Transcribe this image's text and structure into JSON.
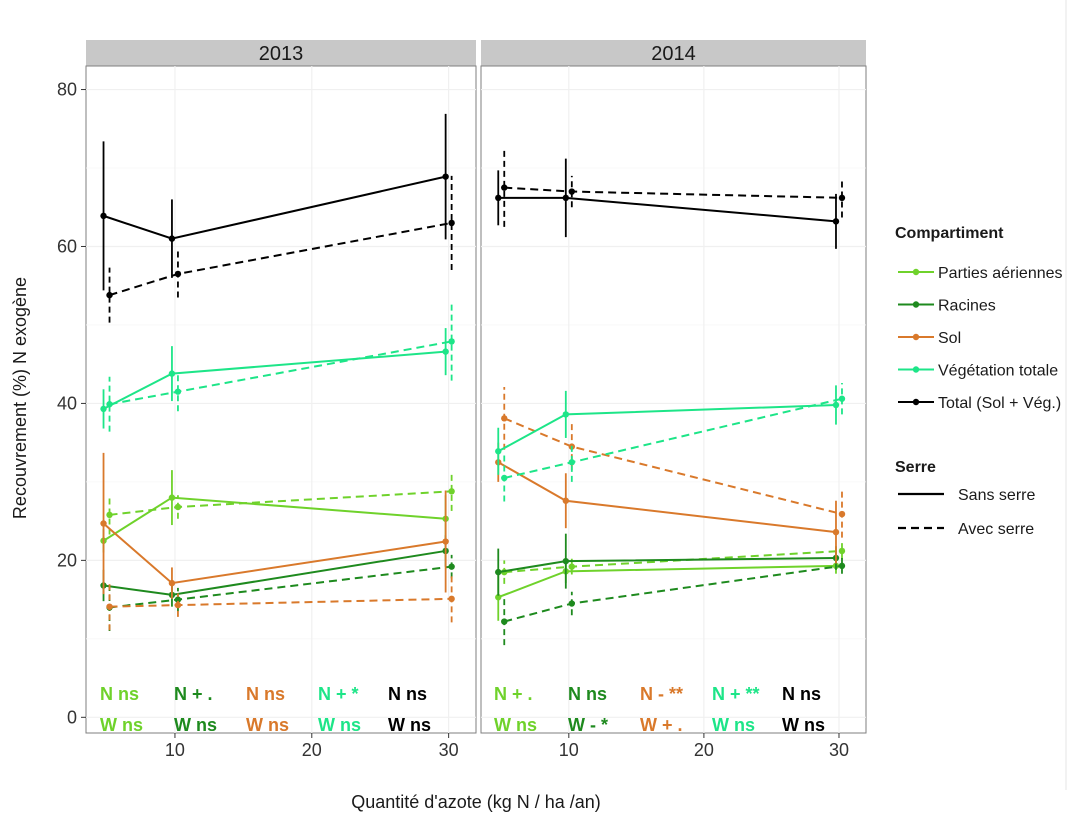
{
  "chart_data": {
    "type": "line",
    "facets": [
      "2013",
      "2014"
    ],
    "xlabel": "Quantité d'azote (kg N / ha /an)",
    "ylabel": "Recouvrement (%) N exogène",
    "x_ticks": [
      10,
      20,
      30
    ],
    "y_ticks": [
      0,
      20,
      40,
      60,
      80
    ],
    "x": [
      5,
      10,
      30
    ],
    "xlim": [
      3.5,
      32
    ],
    "ylim": [
      -2,
      83
    ],
    "grid": true,
    "legend_position": "right",
    "legend": {
      "compartiment_title": "Compartiment",
      "compartiment": [
        {
          "label": "Parties aériennes",
          "color": "#6fd22b"
        },
        {
          "label": "Racines",
          "color": "#1e8a1e"
        },
        {
          "label": "Sol",
          "color": "#d9792b"
        },
        {
          "label": "Végétation totale",
          "color": "#1de588"
        },
        {
          "label": "Total (Sol + Vég.)",
          "color": "#000000"
        }
      ],
      "serre_title": "Serre",
      "serre": [
        {
          "label": "Sans serre",
          "dash": "solid"
        },
        {
          "label": "Avec serre",
          "dash": "dashed"
        }
      ]
    },
    "series": [
      {
        "compartment": "Parties aériennes",
        "serre": "Sans serre",
        "color": "#6fd22b",
        "y2013": [
          22.5,
          28,
          25.3
        ],
        "err2013": [
          1.5,
          3.5,
          3
        ],
        "y2014": [
          15.3,
          18.6,
          19.3
        ],
        "err2014": [
          3,
          1.5,
          1
        ]
      },
      {
        "compartment": "Parties aériennes",
        "serre": "Avec serre",
        "color": "#6fd22b",
        "y2013": [
          25.8,
          26.8,
          28.8
        ],
        "err2013": [
          2.5,
          1.5,
          2.5
        ],
        "y2014": [
          18.5,
          19.2,
          21.2
        ],
        "err2014": [
          1.5,
          1,
          1
        ]
      },
      {
        "compartment": "Racines",
        "serre": "Sans serre",
        "color": "#1e8a1e",
        "y2013": [
          16.8,
          15.6,
          21.2
        ],
        "err2013": [
          2,
          1.5,
          2
        ],
        "y2014": [
          18.5,
          19.9,
          20.3
        ],
        "err2014": [
          3,
          3.5,
          1.5
        ]
      },
      {
        "compartment": "Racines",
        "serre": "Avec serre",
        "color": "#1e8a1e",
        "y2013": [
          14,
          15,
          19.2
        ],
        "err2013": [
          3,
          1.5,
          1.5
        ],
        "y2014": [
          12.2,
          14.5,
          19.3
        ],
        "err2014": [
          3,
          1.5,
          1
        ]
      },
      {
        "compartment": "Sol",
        "serre": "Sans serre",
        "color": "#d9792b",
        "y2013": [
          24.7,
          17.1,
          22.4
        ],
        "err2013": [
          9,
          2,
          6.5
        ],
        "y2014": [
          32.5,
          27.6,
          23.6
        ],
        "err2014": [
          2.5,
          3.5,
          4
        ]
      },
      {
        "compartment": "Sol",
        "serre": "Avec serre",
        "color": "#d9792b",
        "y2013": [
          14.1,
          14.3,
          15.1
        ],
        "err2013": [
          3,
          1.5,
          3
        ],
        "y2014": [
          38.1,
          34.5,
          25.9
        ],
        "err2014": [
          4,
          3,
          3
        ]
      },
      {
        "compartment": "Végétation totale",
        "serre": "Sans serre",
        "color": "#1de588",
        "y2013": [
          39.3,
          43.8,
          46.6
        ],
        "err2013": [
          2.5,
          3.5,
          3
        ],
        "y2014": [
          33.9,
          38.6,
          39.8
        ],
        "err2014": [
          3,
          3,
          2.5
        ]
      },
      {
        "compartment": "Végétation totale",
        "serre": "Avec serre",
        "color": "#1de588",
        "y2013": [
          39.9,
          41.5,
          47.9
        ],
        "err2013": [
          3.5,
          2.5,
          5
        ],
        "y2014": [
          30.5,
          32.5,
          40.6
        ],
        "err2014": [
          3,
          2.5,
          2
        ]
      },
      {
        "compartment": "Total (Sol + Vég.)",
        "serre": "Sans serre",
        "color": "#000000",
        "y2013": [
          63.9,
          61,
          68.9
        ],
        "err2013": [
          9.5,
          5,
          8
        ],
        "y2014": [
          66.2,
          66.2,
          63.2
        ],
        "err2014": [
          3.5,
          5,
          3.5
        ]
      },
      {
        "compartment": "Total (Sol + Vég.)",
        "serre": "Avec serre",
        "color": "#000000",
        "y2013": [
          53.8,
          56.5,
          63
        ],
        "err2013": [
          3.5,
          3,
          6
        ],
        "y2014": [
          67.5,
          67,
          66.2
        ],
        "err2014": [
          5,
          2,
          2.5
        ]
      }
    ],
    "annotations": {
      "2013": [
        [
          "N ns",
          "W ns"
        ],
        [
          "N + .",
          "W ns"
        ],
        [
          "N ns",
          "W ns"
        ],
        [
          "N + *",
          "W ns"
        ],
        [
          "N ns",
          "W ns"
        ]
      ],
      "2014": [
        [
          "N + .",
          "W ns"
        ],
        [
          "N ns",
          "W - *"
        ],
        [
          "N - **",
          "W + ."
        ],
        [
          "N + **",
          "W ns"
        ],
        [
          "N ns",
          "W ns"
        ]
      ]
    }
  }
}
